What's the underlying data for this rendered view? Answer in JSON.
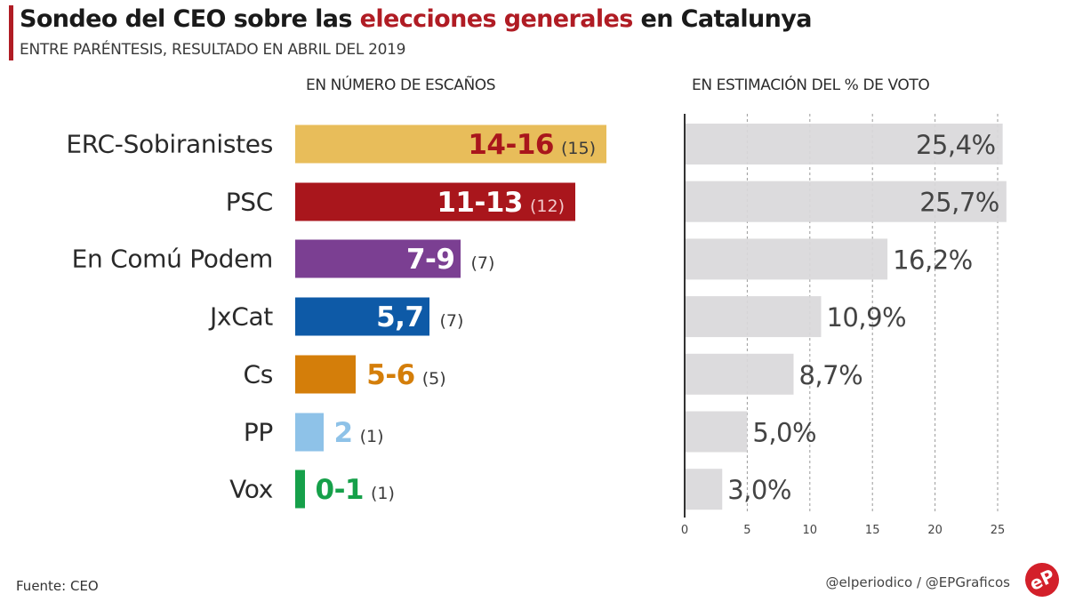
{
  "header": {
    "title_part1": "Sondeo del CEO sobre las ",
    "title_highlight": "elecciones generales",
    "title_part2": " en Catalunya",
    "subtitle": "ENTRE PARÉNTESIS, RESULTADO EN ABRIL DEL 2019",
    "accent_color": "#b01c24"
  },
  "chart_data": [
    {
      "type": "bar",
      "title": "EN NÚMERO DE ESCAÑOS",
      "orientation": "horizontal",
      "categories": [
        "ERC-Sobiranistes",
        "PSC",
        "En Comú Podem",
        "JxCat",
        "Cs",
        "PP",
        "Vox"
      ],
      "labels": [
        "14-16",
        "11-13",
        "7-9",
        "5,7",
        "5-6",
        "2",
        "0-1"
      ],
      "previous_labels": [
        "(15)",
        "(12)",
        "(7)",
        "(7)",
        "(5)",
        "(1)",
        "(1)"
      ],
      "seat_ranges": [
        [
          14,
          16
        ],
        [
          11,
          13
        ],
        [
          7,
          9
        ],
        [
          5,
          7
        ],
        [
          5,
          6
        ],
        [
          2,
          2
        ],
        [
          0,
          1
        ]
      ],
      "previous_values": [
        15,
        12,
        7,
        7,
        5,
        1,
        1
      ],
      "bar_fraction_of_max": [
        1.0,
        0.9,
        0.53,
        0.43,
        0.195,
        0.09,
        0.03
      ],
      "colors": [
        "#e8bd5a",
        "#a9161c",
        "#7b3f92",
        "#0e5aa7",
        "#d47e0a",
        "#8ec2e8",
        "#16a04a"
      ],
      "label_colors": [
        "#a9161c",
        "#ffffff",
        "#ffffff",
        "#ffffff",
        "#d47e0a",
        "#8ec2e8",
        "#16a04a"
      ],
      "label_inside": [
        true,
        true,
        true,
        true,
        false,
        false,
        false
      ]
    },
    {
      "type": "bar",
      "title": "EN ESTIMACIÓN DEL % DE VOTO",
      "orientation": "horizontal",
      "categories": [
        "ERC-Sobiranistes",
        "PSC",
        "En Comú Podem",
        "JxCat",
        "Cs",
        "PP",
        "Vox"
      ],
      "values": [
        25.4,
        25.7,
        16.2,
        10.9,
        8.7,
        5.0,
        3.0
      ],
      "value_labels": [
        "25,4%",
        "25,7%",
        "16,2%",
        "10,9%",
        "8,7%",
        "5,0%",
        "3,0%"
      ],
      "xlim": [
        0,
        25
      ],
      "xticks": [
        0,
        5,
        10,
        15,
        20,
        25
      ],
      "grid": true,
      "bar_color": "#d9d8da"
    }
  ],
  "footer": {
    "source": "Fuente: CEO",
    "credits": "@elperiodico / @EPGraficos",
    "logo_text": "eP",
    "logo_color": "#d3202a"
  }
}
